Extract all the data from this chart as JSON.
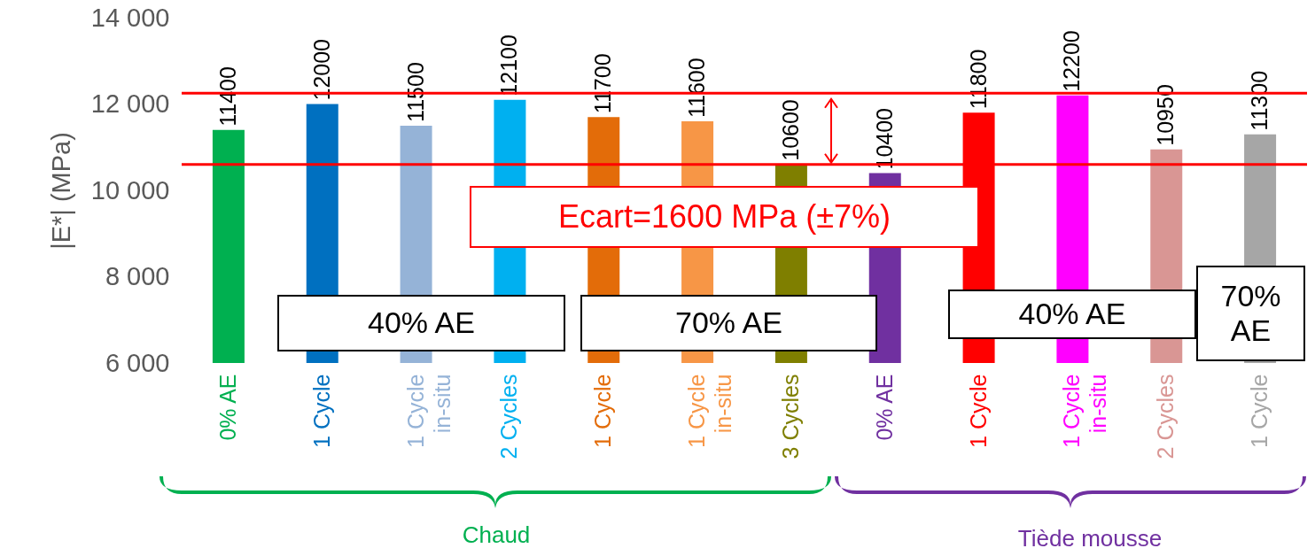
{
  "chart_data": {
    "type": "bar",
    "ylabel": "|E*| (MPa)",
    "categories": [
      "0% AE",
      "1 Cycle",
      "1 Cycle\nin-situ",
      "2 Cycles",
      "1 Cycle",
      "1 Cycle\nin-situ",
      "3 Cycles",
      "0% AE",
      "1 Cycle",
      "1 Cycle\nin-situ",
      "2 Cycles",
      "1 Cycle"
    ],
    "values": [
      11400,
      12000,
      11500,
      12100,
      11700,
      11600,
      10600,
      10400,
      11800,
      12200,
      10950,
      11300
    ],
    "colors": [
      "#00b050",
      "#0070c0",
      "#95b3d7",
      "#00b0f0",
      "#e36c09",
      "#f79646",
      "#7f7f00",
      "#7030a0",
      "#ff0000",
      "#ff00ff",
      "#d99694",
      "#a6a6a6"
    ],
    "ylim": [
      6000,
      14000
    ],
    "yticks": [
      {
        "value": 6000,
        "label": "6 000"
      },
      {
        "value": 8000,
        "label": "8 000"
      },
      {
        "value": 10000,
        "label": "10 000"
      },
      {
        "value": 12000,
        "label": "12 000"
      },
      {
        "value": 14000,
        "label": "14 000"
      }
    ],
    "data_labels": true,
    "grid": false,
    "ref_lines": [
      {
        "axis": "y",
        "value": 12250,
        "color": "#ff0000"
      },
      {
        "axis": "y",
        "value": 10600,
        "color": "#ff0000"
      }
    ],
    "annotations": [
      {
        "text": "Ecart=1600 MPa (±7%)",
        "y": 10600
      },
      "40% AE",
      "70% AE",
      "40% AE",
      "70%\nAE",
      "Chaud",
      "Tiède mousse"
    ]
  }
}
